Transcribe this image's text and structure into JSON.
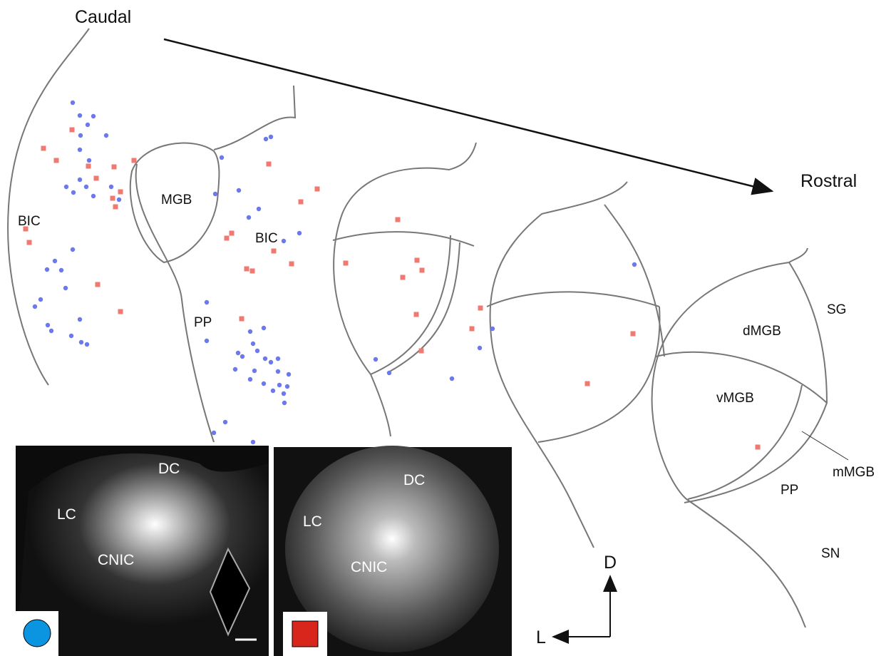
{
  "header": {
    "caudal": "Caudal",
    "rostral": "Rostral"
  },
  "sections": [
    {
      "labels": [
        "BIC"
      ]
    },
    {
      "labels": [
        "MGB",
        "BIC",
        "PP"
      ]
    },
    {
      "labels": []
    },
    {
      "labels": []
    },
    {
      "labels": [
        "SG",
        "dMGB",
        "vMGB",
        "mMGB",
        "PP",
        "SN"
      ]
    }
  ],
  "panels": [
    {
      "labels": [
        "DC",
        "LC",
        "CNIC"
      ]
    },
    {
      "labels": [
        "DC",
        "LC",
        "CNIC"
      ]
    }
  ],
  "orientation": {
    "dorsal": "D",
    "lateral": "L"
  }
}
